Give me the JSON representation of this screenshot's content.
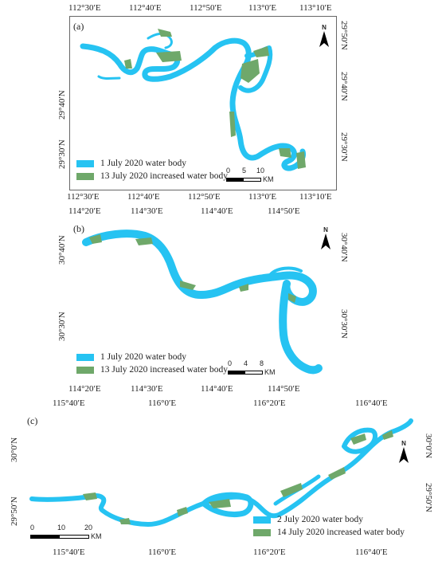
{
  "colors": {
    "water": "#26c3f2",
    "increase": "#6fa86a",
    "frame": "#666666"
  },
  "panels": [
    {
      "letter": "(a)",
      "top_ticks": [
        "112°30′E",
        "112°40′E",
        "112°50′E",
        "113°0′E",
        "113°10′E"
      ],
      "bottom_ticks": [
        "112°30′E",
        "112°40′E",
        "112°50′E",
        "113°0′E",
        "113°10′E"
      ],
      "left_ticks": [
        "29°40′N",
        "29°30′N"
      ],
      "right_ticks": [
        "29°50′N",
        "29°40′N",
        "29°30′N"
      ],
      "legend": [
        "1 July 2020 water body",
        "13 July 2020 increased water body"
      ],
      "scale": {
        "ticks": [
          "0",
          "5",
          "10"
        ],
        "unit": "KM"
      },
      "north": "N"
    },
    {
      "letter": "(b)",
      "top_ticks": [
        "114°20′E",
        "114°30′E",
        "114°40′E",
        "114°50′E"
      ],
      "bottom_ticks": [
        "114°20′E",
        "114°30′E",
        "114°40′E",
        "114°50′E"
      ],
      "left_ticks": [
        "30°40′N",
        "30°30′N"
      ],
      "right_ticks": [
        "30°40′N",
        "30°30′N"
      ],
      "legend": [
        "1 July 2020 water body",
        "13 July 2020 increased water body"
      ],
      "scale": {
        "ticks": [
          "0",
          "4",
          "8"
        ],
        "unit": "KM"
      },
      "north": "N"
    },
    {
      "letter": "(c)",
      "top_ticks": [
        "115°40′E",
        "116°0′E",
        "116°20′E",
        "116°40′E"
      ],
      "bottom_ticks": [
        "115°40′E",
        "116°0′E",
        "116°20′E",
        "116°40′E"
      ],
      "left_ticks": [
        "30°0′N",
        "29°50′N"
      ],
      "right_ticks": [
        "30°0′N",
        "29°50′N"
      ],
      "legend": [
        "2 July 2020 water body",
        "14 July 2020 increased water body"
      ],
      "scale": {
        "ticks": [
          "0",
          "10",
          "20"
        ],
        "unit": "KM"
      },
      "north": "N"
    }
  ]
}
